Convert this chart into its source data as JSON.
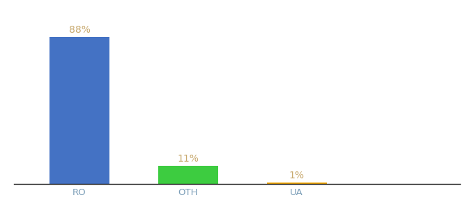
{
  "categories": [
    "RO",
    "OTH",
    "UA"
  ],
  "values": [
    88,
    11,
    1
  ],
  "bar_colors": [
    "#4472c4",
    "#3dcc40",
    "#f0a500"
  ],
  "label_colors": [
    "#c8a96e",
    "#c8a96e",
    "#c8a96e"
  ],
  "labels": [
    "88%",
    "11%",
    "1%"
  ],
  "background_color": "#ffffff",
  "ylim": [
    0,
    100
  ],
  "bar_width": 0.55,
  "label_fontsize": 10,
  "tick_fontsize": 9.5,
  "tick_color": "#7b9eb8"
}
